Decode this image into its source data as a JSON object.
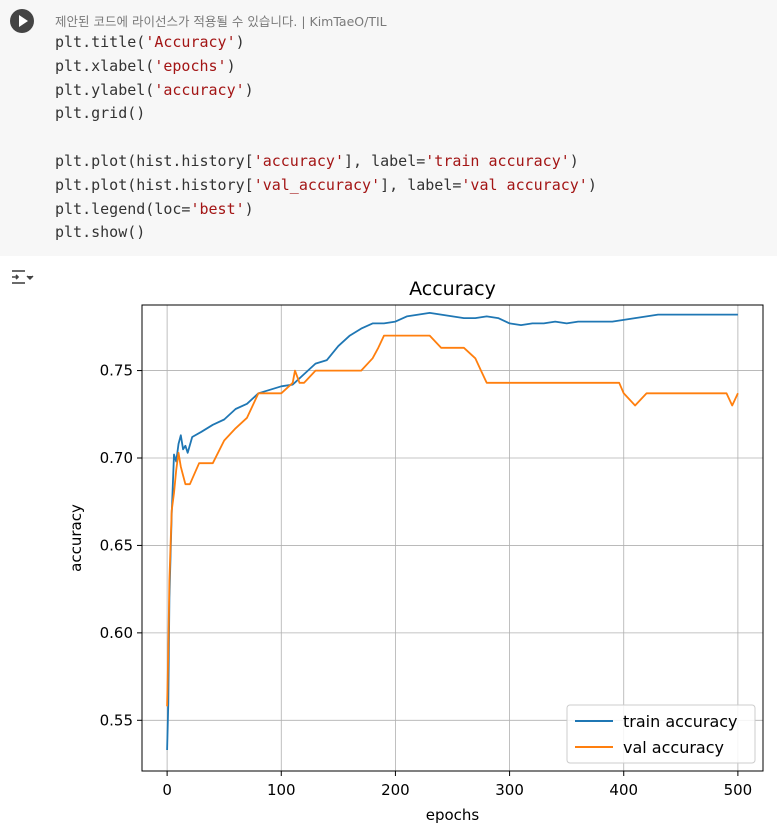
{
  "cell": {
    "notice": "제안된 코드에 라이선스가 적용될 수 있습니다. | KimTaeO/TIL",
    "run_icon": "play-icon",
    "output_icon": "output-toggle-icon"
  },
  "code": {
    "l1": [
      "plt.title(",
      "'Accuracy'",
      ")"
    ],
    "l2": [
      "plt.xlabel(",
      "'epochs'",
      ")"
    ],
    "l3": [
      "plt.ylabel(",
      "'accuracy'",
      ")"
    ],
    "l4": [
      "plt.grid()"
    ],
    "l6": [
      "plt.plot(hist.history[",
      "'accuracy'",
      "], label=",
      "'train accuracy'",
      ")"
    ],
    "l7": [
      "plt.plot(hist.history[",
      "'val_accuracy'",
      "], label=",
      "'val accuracy'",
      ")"
    ],
    "l8": [
      "plt.legend(loc=",
      "'best'",
      ")"
    ],
    "l9": [
      "plt.show()"
    ]
  },
  "chart_data": {
    "type": "line",
    "title": "Accuracy",
    "xlabel": "epochs",
    "ylabel": "accuracy",
    "xlim": [
      -22,
      522
    ],
    "ylim": [
      0.521,
      0.7875
    ],
    "xticks": [
      0,
      100,
      200,
      300,
      400,
      500
    ],
    "yticks": [
      0.55,
      0.6,
      0.65,
      0.7,
      0.75
    ],
    "ytick_labels": [
      "0.55",
      "0.60",
      "0.65",
      "0.70",
      "0.75"
    ],
    "grid": true,
    "legend": "lower right",
    "series": [
      {
        "name": "train accuracy",
        "color": "#1f77b4",
        "x": [
          0,
          1,
          2,
          4,
          6,
          8,
          10,
          12,
          14,
          16,
          18,
          22,
          30,
          40,
          50,
          60,
          70,
          80,
          90,
          100,
          110,
          120,
          130,
          140,
          150,
          160,
          170,
          180,
          190,
          200,
          210,
          220,
          230,
          240,
          250,
          260,
          270,
          280,
          290,
          300,
          310,
          320,
          330,
          340,
          350,
          360,
          370,
          380,
          390,
          400,
          410,
          420,
          430,
          440,
          450,
          460,
          470,
          480,
          490,
          500
        ],
        "values": [
          0.533,
          0.56,
          0.62,
          0.668,
          0.702,
          0.698,
          0.708,
          0.713,
          0.705,
          0.707,
          0.703,
          0.712,
          0.715,
          0.719,
          0.722,
          0.728,
          0.731,
          0.737,
          0.739,
          0.741,
          0.742,
          0.748,
          0.754,
          0.756,
          0.764,
          0.77,
          0.774,
          0.777,
          0.777,
          0.778,
          0.781,
          0.782,
          0.783,
          0.782,
          0.781,
          0.78,
          0.78,
          0.781,
          0.78,
          0.777,
          0.776,
          0.777,
          0.777,
          0.778,
          0.777,
          0.778,
          0.778,
          0.778,
          0.778,
          0.779,
          0.78,
          0.781,
          0.782,
          0.782,
          0.782,
          0.782,
          0.782,
          0.782,
          0.782,
          0.782
        ]
      },
      {
        "name": "val accuracy",
        "color": "#ff7f0e",
        "x": [
          0,
          1,
          2,
          4,
          6,
          8,
          10,
          12,
          14,
          16,
          18,
          20,
          28,
          40,
          50,
          60,
          70,
          80,
          100,
          110,
          112,
          116,
          120,
          130,
          140,
          150,
          160,
          170,
          180,
          185,
          190,
          200,
          210,
          220,
          230,
          240,
          250,
          260,
          270,
          275,
          280,
          300,
          320,
          340,
          360,
          380,
          396,
          400,
          410,
          420,
          440,
          460,
          480,
          490,
          495,
          500
        ],
        "values": [
          0.558,
          0.59,
          0.63,
          0.67,
          0.68,
          0.693,
          0.703,
          0.695,
          0.69,
          0.685,
          0.685,
          0.685,
          0.697,
          0.697,
          0.71,
          0.717,
          0.723,
          0.737,
          0.737,
          0.743,
          0.75,
          0.743,
          0.743,
          0.75,
          0.75,
          0.75,
          0.75,
          0.75,
          0.757,
          0.763,
          0.77,
          0.77,
          0.77,
          0.77,
          0.77,
          0.763,
          0.763,
          0.763,
          0.757,
          0.75,
          0.743,
          0.743,
          0.743,
          0.743,
          0.743,
          0.743,
          0.743,
          0.737,
          0.73,
          0.737,
          0.737,
          0.737,
          0.737,
          0.737,
          0.73,
          0.737
        ]
      }
    ]
  }
}
